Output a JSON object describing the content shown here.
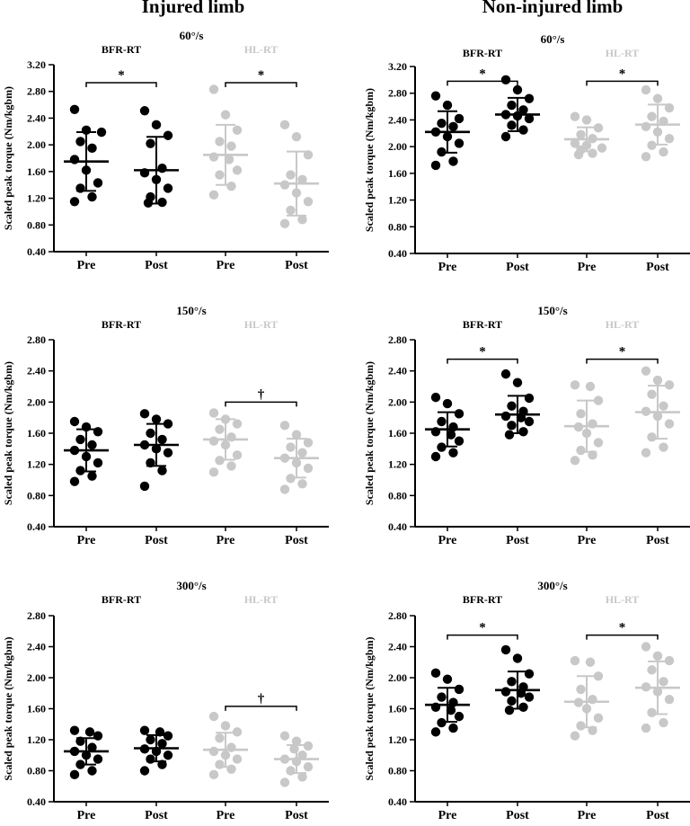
{
  "columns": [
    "Injured limb",
    "Non-injured limb"
  ],
  "colors": {
    "BFR-RT": "#000000",
    "HL-RT": "#c8c8c8"
  },
  "chart_data": [
    {
      "type": "scatter",
      "limb": "Injured limb",
      "title": "60°/s",
      "ylabel": "Scaled peak torque (Nm/kgbm)",
      "ylim": [
        0.4,
        3.2
      ],
      "yticks": [
        "0.40",
        "0.80",
        "1.20",
        "1.60",
        "2.00",
        "2.40",
        "2.80",
        "3.20"
      ],
      "categories": [
        "Pre",
        "Post",
        "Pre",
        "Post"
      ],
      "groups": [
        {
          "name": "BFR-RT",
          "color": "#000000"
        },
        {
          "name": "HL-RT",
          "color": "#c8c8c8"
        }
      ],
      "series": [
        {
          "group": "BFR-RT",
          "label": "Pre",
          "mean": 1.75,
          "sd": 0.44,
          "values": [
            2.53,
            2.22,
            2.19,
            2.05,
            1.95,
            1.78,
            1.62,
            1.43,
            1.35,
            1.22,
            1.15
          ]
        },
        {
          "group": "BFR-RT",
          "label": "Post",
          "mean": 1.62,
          "sd": 0.5,
          "values": [
            2.51,
            2.3,
            2.14,
            2.02,
            1.65,
            1.58,
            1.48,
            1.35,
            1.22,
            1.14,
            1.13
          ]
        },
        {
          "group": "HL-RT",
          "label": "Pre",
          "mean": 1.85,
          "sd": 0.45,
          "values": [
            2.83,
            2.45,
            2.22,
            2.05,
            1.98,
            1.82,
            1.78,
            1.62,
            1.55,
            1.38,
            1.25
          ]
        },
        {
          "group": "HL-RT",
          "label": "Post",
          "mean": 1.42,
          "sd": 0.48,
          "values": [
            2.3,
            2.12,
            1.85,
            1.55,
            1.48,
            1.4,
            1.28,
            1.15,
            1.02,
            0.88,
            0.82
          ]
        }
      ],
      "comparisons": [
        {
          "from": 0,
          "to": 1,
          "symbol": "*",
          "y": 2.93
        },
        {
          "from": 2,
          "to": 3,
          "symbol": "*",
          "y": 2.93
        }
      ]
    },
    {
      "type": "scatter",
      "limb": "Non-injured limb",
      "title": "60°/s",
      "ylabel": "Scaled peak torque (Nm/kgbm)",
      "ylim": [
        0.4,
        3.2
      ],
      "yticks": [
        "0.40",
        "0.80",
        "1.20",
        "1.60",
        "2.00",
        "2.40",
        "2.80",
        "3.20"
      ],
      "categories": [
        "Pre",
        "Post",
        "Pre",
        "Post"
      ],
      "groups": [
        {
          "name": "BFR-RT",
          "color": "#000000"
        },
        {
          "name": "HL-RT",
          "color": "#c8c8c8"
        }
      ],
      "series": [
        {
          "group": "BFR-RT",
          "label": "Pre",
          "mean": 2.22,
          "sd": 0.31,
          "values": [
            2.76,
            2.62,
            2.42,
            2.35,
            2.3,
            2.22,
            2.15,
            2.05,
            1.92,
            1.78,
            1.72
          ]
        },
        {
          "group": "BFR-RT",
          "label": "Post",
          "mean": 2.48,
          "sd": 0.25,
          "values": [
            3.0,
            2.85,
            2.72,
            2.62,
            2.55,
            2.48,
            2.46,
            2.42,
            2.32,
            2.25,
            2.15
          ]
        },
        {
          "group": "HL-RT",
          "label": "Pre",
          "mean": 2.11,
          "sd": 0.18,
          "values": [
            2.45,
            2.4,
            2.28,
            2.18,
            2.12,
            2.05,
            2.02,
            1.98,
            1.95,
            1.9,
            1.88
          ]
        },
        {
          "group": "HL-RT",
          "label": "Post",
          "mean": 2.33,
          "sd": 0.3,
          "values": [
            2.85,
            2.72,
            2.58,
            2.45,
            2.38,
            2.3,
            2.22,
            2.12,
            2.02,
            1.92,
            1.85
          ]
        }
      ],
      "comparisons": [
        {
          "from": 0,
          "to": 1,
          "symbol": "*",
          "y": 2.98
        },
        {
          "from": 2,
          "to": 3,
          "symbol": "*",
          "y": 2.98
        }
      ]
    },
    {
      "type": "scatter",
      "limb": "Injured limb",
      "title": "150°/s",
      "ylabel": "Scaled peak torque (Nm/kgbm)",
      "ylim": [
        0.4,
        2.8
      ],
      "yticks": [
        "0.40",
        "0.80",
        "1.20",
        "1.60",
        "2.00",
        "2.40",
        "2.80"
      ],
      "categories": [
        "Pre",
        "Post",
        "Pre",
        "Post"
      ],
      "groups": [
        {
          "name": "BFR-RT",
          "color": "#000000"
        },
        {
          "name": "HL-RT",
          "color": "#c8c8c8"
        }
      ],
      "series": [
        {
          "group": "BFR-RT",
          "label": "Pre",
          "mean": 1.38,
          "sd": 0.27,
          "values": [
            1.75,
            1.68,
            1.62,
            1.52,
            1.45,
            1.38,
            1.3,
            1.22,
            1.12,
            1.05,
            0.98
          ]
        },
        {
          "group": "BFR-RT",
          "label": "Post",
          "mean": 1.45,
          "sd": 0.27,
          "values": [
            1.85,
            1.78,
            1.72,
            1.6,
            1.52,
            1.45,
            1.4,
            1.35,
            1.22,
            1.12,
            0.92
          ]
        },
        {
          "group": "HL-RT",
          "label": "Pre",
          "mean": 1.52,
          "sd": 0.26,
          "values": [
            1.86,
            1.78,
            1.72,
            1.65,
            1.55,
            1.5,
            1.45,
            1.32,
            1.25,
            1.18,
            1.1
          ]
        },
        {
          "group": "HL-RT",
          "label": "Post",
          "mean": 1.28,
          "sd": 0.25,
          "values": [
            1.7,
            1.58,
            1.48,
            1.42,
            1.35,
            1.28,
            1.22,
            1.15,
            1.02,
            0.95,
            0.88
          ]
        }
      ],
      "comparisons": [
        {
          "from": 2,
          "to": 3,
          "symbol": "†",
          "y": 2.0
        }
      ]
    },
    {
      "type": "scatter",
      "limb": "Non-injured limb",
      "title": "150°/s",
      "ylabel": "Scaled peak torque (Nm/kgbm)",
      "ylim": [
        0.4,
        2.8
      ],
      "yticks": [
        "0.40",
        "0.80",
        "1.20",
        "1.60",
        "2.00",
        "2.40",
        "2.80"
      ],
      "categories": [
        "Pre",
        "Post",
        "Pre",
        "Post"
      ],
      "groups": [
        {
          "name": "BFR-RT",
          "color": "#000000"
        },
        {
          "name": "HL-RT",
          "color": "#c8c8c8"
        }
      ],
      "series": [
        {
          "group": "BFR-RT",
          "label": "Pre",
          "mean": 1.65,
          "sd": 0.22,
          "values": [
            2.06,
            1.98,
            1.85,
            1.75,
            1.68,
            1.62,
            1.58,
            1.5,
            1.42,
            1.35,
            1.3
          ]
        },
        {
          "group": "BFR-RT",
          "label": "Post",
          "mean": 1.84,
          "sd": 0.24,
          "values": [
            2.36,
            2.25,
            2.05,
            1.95,
            1.88,
            1.82,
            1.8,
            1.75,
            1.7,
            1.62,
            1.58
          ]
        },
        {
          "group": "HL-RT",
          "label": "Pre",
          "mean": 1.69,
          "sd": 0.33,
          "values": [
            2.22,
            2.2,
            2.02,
            1.85,
            1.72,
            1.68,
            1.6,
            1.48,
            1.38,
            1.32,
            1.25
          ]
        },
        {
          "group": "HL-RT",
          "label": "Post",
          "mean": 1.87,
          "sd": 0.34,
          "values": [
            2.4,
            2.28,
            2.22,
            2.1,
            1.95,
            1.88,
            1.82,
            1.72,
            1.55,
            1.42,
            1.35
          ]
        }
      ],
      "comparisons": [
        {
          "from": 0,
          "to": 1,
          "symbol": "*",
          "y": 2.55
        },
        {
          "from": 2,
          "to": 3,
          "symbol": "*",
          "y": 2.55
        }
      ]
    },
    {
      "type": "scatter",
      "limb": "Injured limb",
      "title": "300°/s",
      "ylabel": "Scaled peak torque (Nm/kgbm)",
      "ylim": [
        0.4,
        2.8
      ],
      "yticks": [
        "0.40",
        "0.80",
        "1.20",
        "1.60",
        "2.00",
        "2.40",
        "2.80"
      ],
      "categories": [
        "Pre",
        "Post",
        "Pre",
        "Post"
      ],
      "groups": [
        {
          "name": "BFR-RT",
          "color": "#000000"
        },
        {
          "name": "HL-RT",
          "color": "#c8c8c8"
        }
      ],
      "series": [
        {
          "group": "BFR-RT",
          "label": "Pre",
          "mean": 1.05,
          "sd": 0.17,
          "values": [
            1.32,
            1.3,
            1.25,
            1.18,
            1.1,
            1.05,
            1.0,
            0.95,
            0.88,
            0.8,
            0.75
          ]
        },
        {
          "group": "BFR-RT",
          "label": "Post",
          "mean": 1.09,
          "sd": 0.17,
          "values": [
            1.32,
            1.3,
            1.25,
            1.2,
            1.15,
            1.08,
            1.05,
            1.0,
            0.95,
            0.88,
            0.8
          ]
        },
        {
          "group": "HL-RT",
          "label": "Pre",
          "mean": 1.07,
          "sd": 0.22,
          "values": [
            1.5,
            1.38,
            1.3,
            1.22,
            1.1,
            1.05,
            1.0,
            0.95,
            0.88,
            0.82,
            0.75
          ]
        },
        {
          "group": "HL-RT",
          "label": "Post",
          "mean": 0.95,
          "sd": 0.18,
          "values": [
            1.25,
            1.18,
            1.12,
            1.08,
            1.0,
            0.95,
            0.92,
            0.85,
            0.8,
            0.72,
            0.65
          ]
        }
      ],
      "comparisons": [
        {
          "from": 2,
          "to": 3,
          "symbol": "†",
          "y": 1.63
        }
      ]
    },
    {
      "type": "scatter",
      "limb": "Non-injured limb",
      "title": "300°/s",
      "ylabel": "Scaled peak torque (Nm/kgbm)",
      "ylim": [
        0.4,
        2.8
      ],
      "yticks": [
        "0.40",
        "0.80",
        "1.20",
        "1.60",
        "2.00",
        "2.40",
        "2.80"
      ],
      "categories": [
        "Pre",
        "Post",
        "Pre",
        "Post"
      ],
      "groups": [
        {
          "name": "BFR-RT",
          "color": "#000000"
        },
        {
          "name": "HL-RT",
          "color": "#c8c8c8"
        }
      ],
      "series": [
        {
          "group": "BFR-RT",
          "label": "Pre",
          "mean": 1.65,
          "sd": 0.22,
          "values": [
            2.06,
            1.98,
            1.85,
            1.75,
            1.68,
            1.62,
            1.58,
            1.5,
            1.42,
            1.35,
            1.3
          ]
        },
        {
          "group": "BFR-RT",
          "label": "Post",
          "mean": 1.84,
          "sd": 0.24,
          "values": [
            2.36,
            2.25,
            2.05,
            1.95,
            1.88,
            1.82,
            1.8,
            1.75,
            1.7,
            1.62,
            1.58
          ]
        },
        {
          "group": "HL-RT",
          "label": "Pre",
          "mean": 1.69,
          "sd": 0.33,
          "values": [
            2.22,
            2.2,
            2.02,
            1.85,
            1.72,
            1.68,
            1.6,
            1.48,
            1.38,
            1.32,
            1.25
          ]
        },
        {
          "group": "HL-RT",
          "label": "Post",
          "mean": 1.87,
          "sd": 0.34,
          "values": [
            2.4,
            2.28,
            2.22,
            2.1,
            1.95,
            1.88,
            1.82,
            1.72,
            1.55,
            1.42,
            1.35
          ]
        }
      ],
      "comparisons": [
        {
          "from": 0,
          "to": 1,
          "symbol": "*",
          "y": 2.55
        },
        {
          "from": 2,
          "to": 3,
          "symbol": "*",
          "y": 2.55
        }
      ]
    }
  ]
}
